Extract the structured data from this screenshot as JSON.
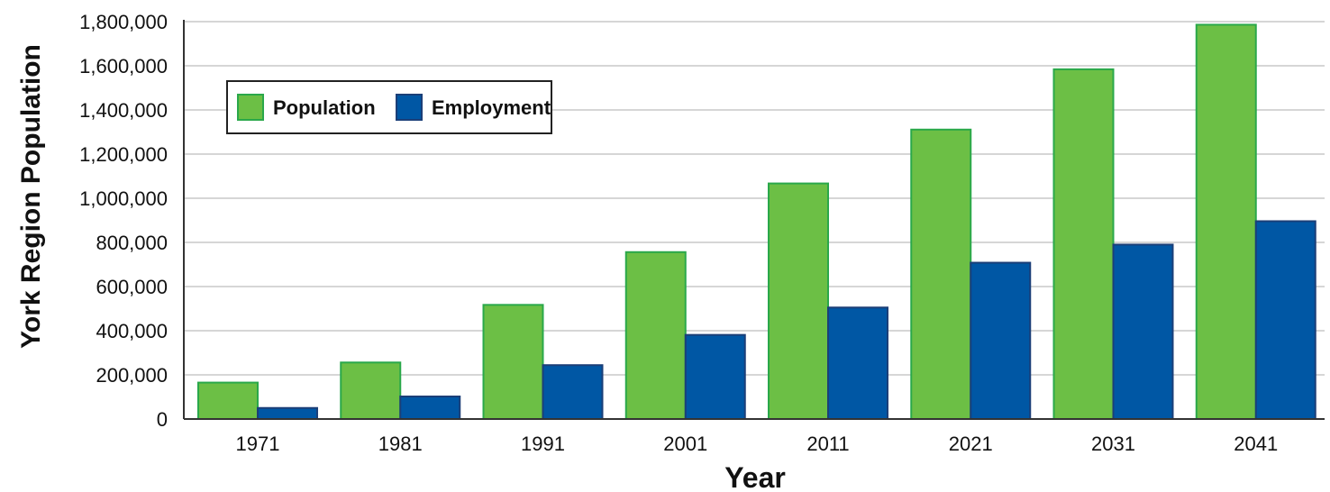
{
  "chart_data": {
    "type": "bar",
    "title": "",
    "xlabel": "Year",
    "ylabel": "York Region Population",
    "categories": [
      "1971",
      "1981",
      "1991",
      "2001",
      "2011",
      "2021",
      "2031",
      "2041"
    ],
    "series": [
      {
        "name": "Population",
        "values": [
          165000,
          256000,
          517000,
          756000,
          1067000,
          1311000,
          1584000,
          1786000
        ]
      },
      {
        "name": "Employment",
        "values": [
          50000,
          102000,
          244000,
          381000,
          505000,
          708000,
          790000,
          896000
        ]
      }
    ],
    "ylim": [
      0,
      1800000
    ],
    "yticks": [
      "0",
      "200,000",
      "400,000",
      "600,000",
      "800,000",
      "1,000,000",
      "1,200,000",
      "1,400,000",
      "1,600,000",
      "1,800,000"
    ],
    "grid": true,
    "legend_position": "top-left",
    "colors": {
      "population_fill": "#6cbf45",
      "population_stroke": "#2aa84a",
      "employment_fill": "#0057a4",
      "employment_stroke": "#1b3f78",
      "grid": "#c8c8c8",
      "axis": "#333333"
    }
  }
}
